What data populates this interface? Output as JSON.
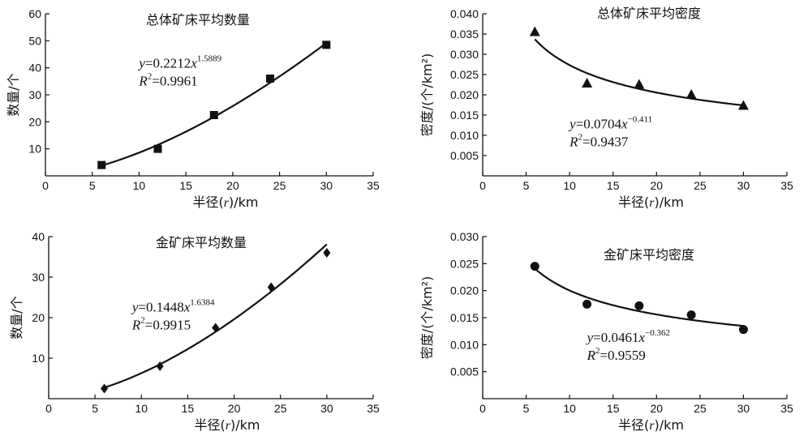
{
  "chart_data": [
    {
      "type": "scatter",
      "title": "总体矿床平均数量",
      "xlabel_prefix": "半径(",
      "xlabel_var": "r",
      "xlabel_suffix": ")/km",
      "ylabel": "数量/个",
      "xlim": [
        0,
        35
      ],
      "ylim": [
        0,
        60
      ],
      "xticks": [
        0,
        5,
        10,
        15,
        20,
        25,
        30,
        35
      ],
      "yticks": [
        10,
        20,
        30,
        40,
        50,
        60
      ],
      "ytick_decimals": 0,
      "marker": "square",
      "x": [
        6,
        12,
        18,
        24,
        30
      ],
      "y": [
        4,
        10,
        22.5,
        36,
        48.5
      ],
      "fit": {
        "a": 0.2212,
        "b": 1.5889,
        "from": 6,
        "to": 30
      },
      "equation": {
        "lhs": "y",
        "eq": "=0.2212",
        "xvar": "x",
        "exponent": "1.5889",
        "r2_label": "R",
        "r2_sup": "2",
        "r2_value": "=0.9961"
      },
      "eq_anchor": [
        10,
        40
      ]
    },
    {
      "type": "scatter",
      "title": "总体矿床平均密度",
      "xlabel_prefix": "半径(",
      "xlabel_var": "r",
      "xlabel_suffix": ")/km",
      "ylabel": "密度/(个/km²)",
      "xlim": [
        0,
        35
      ],
      "ylim": [
        0,
        0.04
      ],
      "xticks": [
        0,
        5,
        10,
        15,
        20,
        25,
        30,
        35
      ],
      "yticks": [
        0.005,
        0.01,
        0.015,
        0.02,
        0.025,
        0.03,
        0.035,
        0.04
      ],
      "ytick_decimals": 3,
      "marker": "triangle",
      "x": [
        6,
        12,
        18,
        24,
        30
      ],
      "y": [
        0.0355,
        0.0228,
        0.0225,
        0.02,
        0.0173
      ],
      "fit": {
        "a": 0.0704,
        "b": -0.411,
        "from": 6,
        "to": 30
      },
      "equation": {
        "lhs": "y",
        "eq": "=0.0704",
        "xvar": "x",
        "exponent": "−0.411",
        "r2_label": "R",
        "r2_sup": "2",
        "r2_value": "=0.9437"
      },
      "eq_anchor": [
        10,
        0.0117
      ]
    },
    {
      "type": "scatter",
      "title": "金矿床平均数量",
      "xlabel_prefix": "半径(",
      "xlabel_var": "r",
      "xlabel_suffix": ")/km",
      "ylabel": "数量/个",
      "xlim": [
        0,
        35
      ],
      "ylim": [
        0,
        40
      ],
      "xticks": [
        0,
        5,
        10,
        15,
        20,
        25,
        30,
        35
      ],
      "yticks": [
        10,
        20,
        30,
        40
      ],
      "ytick_decimals": 0,
      "marker": "diamond",
      "x": [
        6,
        12,
        18,
        24,
        30
      ],
      "y": [
        2.5,
        8,
        17.5,
        27.5,
        36
      ],
      "fit": {
        "a": 0.1448,
        "b": 1.6384,
        "from": 6,
        "to": 30
      },
      "equation": {
        "lhs": "y",
        "eq": "=0.1448",
        "xvar": "x",
        "exponent": "1.6384",
        "r2_label": "R",
        "r2_sup": "2",
        "r2_value": "=0.9915"
      },
      "eq_anchor": [
        9,
        21.5
      ]
    },
    {
      "type": "scatter",
      "title": "金矿床平均密度",
      "xlabel_prefix": "半径(",
      "xlabel_var": "r",
      "xlabel_suffix": ")/km",
      "ylabel": "密度/(个/km²)",
      "xlim": [
        0,
        35
      ],
      "ylim": [
        0,
        0.03
      ],
      "xticks": [
        0,
        5,
        10,
        15,
        20,
        25,
        30,
        35
      ],
      "yticks": [
        0.005,
        0.01,
        0.015,
        0.02,
        0.025,
        0.03
      ],
      "ytick_decimals": 3,
      "marker": "circle",
      "x": [
        6,
        12,
        18,
        24,
        30
      ],
      "y": [
        0.0245,
        0.0175,
        0.0172,
        0.0155,
        0.0128
      ],
      "fit": {
        "a": 0.0461,
        "b": -0.362,
        "from": 6,
        "to": 30
      },
      "equation": {
        "lhs": "y",
        "eq": "=0.0461",
        "xvar": "x",
        "exponent": "−0.362",
        "r2_label": "R",
        "r2_sup": "2",
        "r2_value": "=0.9559"
      },
      "eq_anchor": [
        12,
        0.0105
      ]
    }
  ]
}
